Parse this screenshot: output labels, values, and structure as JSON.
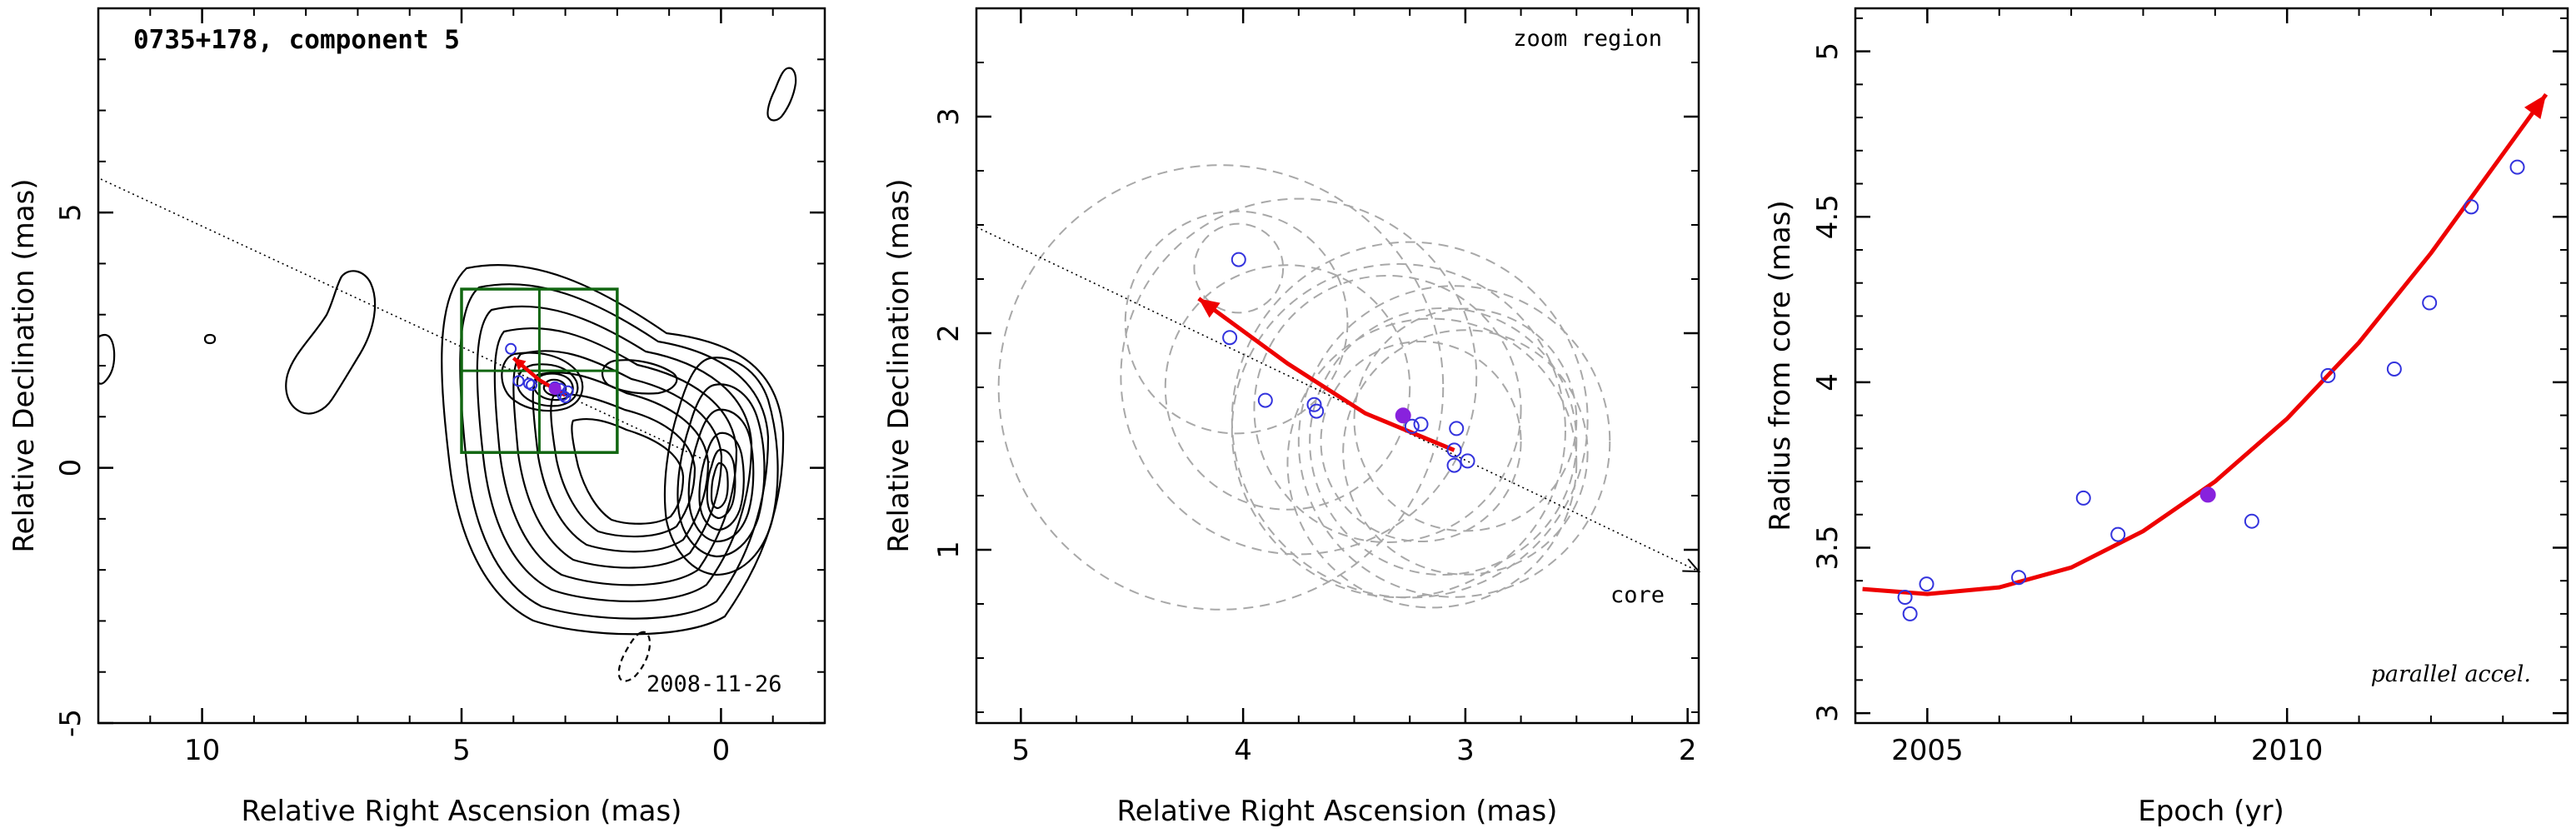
{
  "colors": {
    "trajectory": "#ee0000",
    "epoch_marker": "#3333dd",
    "reference_epoch": "#8822dd",
    "contours": "#000000",
    "zoom_box": "#116611",
    "beam_circles": "#a8a8a8"
  },
  "chart_data": [
    {
      "panel": "left",
      "type": "scatter",
      "title": "0735+178, component 5",
      "xlabel": "Relative Right Ascension (mas)",
      "ylabel": "Relative Declination (mas)",
      "xlim": [
        12.0,
        -2.0
      ],
      "ylim": [
        -5.0,
        9.0
      ],
      "xticks": [
        10,
        5,
        0
      ],
      "yticks": [
        -5,
        0,
        5
      ],
      "epoch_label": "2008-11-26",
      "direction_line": [
        [
          13.0,
          6.15
        ],
        [
          0.2,
          0.1
        ]
      ],
      "zoom_box": {
        "x": [
          5.0,
          2.0
        ],
        "y": [
          0.3,
          3.5
        ]
      },
      "core": [
        0.0,
        0.0
      ],
      "trajectory": [
        [
          3.0,
          1.42
        ],
        [
          3.5,
          1.72
        ],
        [
          4.0,
          2.15
        ]
      ],
      "points": [
        [
          4.05,
          2.33
        ],
        [
          3.9,
          1.7
        ],
        [
          3.7,
          1.65
        ],
        [
          3.65,
          1.62
        ],
        [
          3.2,
          1.58
        ],
        [
          3.05,
          1.42
        ],
        [
          3.0,
          1.38
        ],
        [
          2.95,
          1.5
        ],
        [
          3.1,
          1.55
        ]
      ],
      "reference_point": [
        3.2,
        1.55
      ]
    },
    {
      "panel": "middle",
      "type": "scatter",
      "title": "zoom region",
      "xlabel": "Relative Right Ascension (mas)",
      "ylabel": "Relative Declination (mas)",
      "xlim": [
        5.2,
        1.95
      ],
      "ylim": [
        0.2,
        3.5
      ],
      "xticks": [
        5,
        4,
        3,
        2
      ],
      "yticks": [
        1,
        2,
        3
      ],
      "direction_label": "core",
      "direction_line": [
        [
          5.2,
          2.49
        ],
        [
          1.95,
          0.9
        ]
      ],
      "trajectory": [
        [
          3.05,
          1.46
        ],
        [
          3.45,
          1.63
        ],
        [
          3.8,
          1.86
        ],
        [
          4.2,
          2.16
        ]
      ],
      "points": [
        [
          4.06,
          1.98
        ],
        [
          4.02,
          2.34
        ],
        [
          3.9,
          1.69
        ],
        [
          3.68,
          1.67
        ],
        [
          3.67,
          1.64
        ],
        [
          3.2,
          1.58
        ],
        [
          3.24,
          1.57
        ],
        [
          3.04,
          1.56
        ],
        [
          3.05,
          1.46
        ],
        [
          3.05,
          1.39
        ],
        [
          2.99,
          1.41
        ]
      ],
      "reference_point": [
        3.28,
        1.62
      ],
      "beam_circles": [
        [
          4.02,
          2.3,
          0.2
        ],
        [
          4.03,
          2.05,
          0.5
        ],
        [
          3.8,
          1.75,
          0.55
        ],
        [
          3.75,
          1.8,
          0.8
        ],
        [
          4.1,
          1.75,
          1.0
        ],
        [
          3.35,
          1.65,
          0.6
        ],
        [
          3.3,
          1.55,
          0.75
        ],
        [
          3.25,
          1.6,
          0.8
        ],
        [
          3.1,
          1.5,
          0.6
        ],
        [
          3.05,
          1.5,
          0.7
        ],
        [
          3.0,
          1.45,
          0.55
        ],
        [
          3.15,
          1.4,
          0.65
        ],
        [
          3.0,
          1.6,
          0.5
        ],
        [
          3.2,
          1.5,
          0.45
        ]
      ]
    },
    {
      "panel": "right",
      "type": "scatter",
      "xlabel": "Epoch (yr)",
      "ylabel": "Radius from core (mas)",
      "xlim": [
        2004.0,
        2013.9
      ],
      "ylim": [
        2.97,
        5.13
      ],
      "xticks": [
        2005,
        2010
      ],
      "yticks": [
        3,
        3.5,
        4,
        4.5,
        5
      ],
      "annotation": "parallel accel.",
      "x": [
        2004.69,
        2004.76,
        2004.99,
        2006.27,
        2007.17,
        2007.65,
        2009.51,
        2010.57,
        2011.49,
        2011.98,
        2012.56,
        2013.2
      ],
      "y": [
        3.35,
        3.3,
        3.39,
        3.41,
        3.65,
        3.54,
        3.58,
        4.02,
        4.04,
        4.24,
        4.53,
        4.65
      ],
      "reference_point": [
        2008.9,
        3.66
      ],
      "fit_curve": [
        [
          2004.1,
          3.375
        ],
        [
          2005.0,
          3.36
        ],
        [
          2006.0,
          3.38
        ],
        [
          2007.0,
          3.44
        ],
        [
          2008.0,
          3.55
        ],
        [
          2009.0,
          3.7
        ],
        [
          2010.0,
          3.89
        ],
        [
          2011.0,
          4.12
        ],
        [
          2012.0,
          4.39
        ],
        [
          2013.0,
          4.69
        ],
        [
          2013.6,
          4.87
        ]
      ]
    }
  ]
}
